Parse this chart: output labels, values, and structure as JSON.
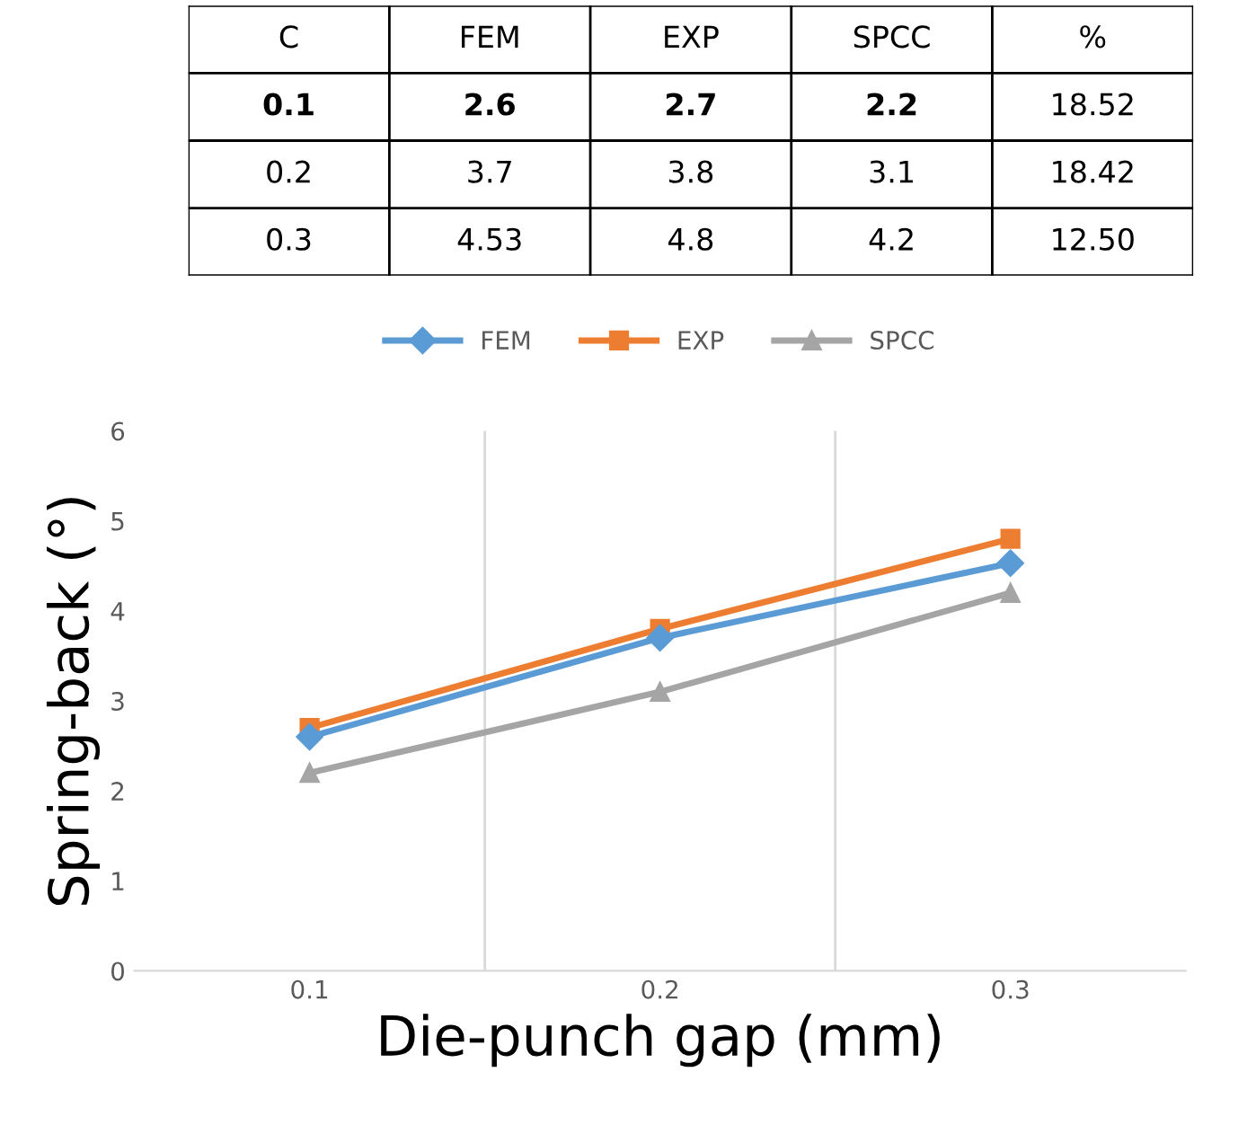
{
  "chart_data": [
    {
      "type": "other",
      "annotations": [
        "C",
        "FEM",
        "EXP",
        "SPCC",
        "%",
        "0.1",
        "2.6",
        "2.7",
        "2.2",
        "18.52",
        "0.2",
        "3.7",
        "3.8",
        "3.1",
        "18.42",
        "0.3",
        "4.53",
        "4.8",
        "4.2",
        "12.50"
      ]
    },
    {
      "type": "line",
      "xlabel": "Die-punch gap (mm)",
      "ylabel": "Spring-back (°)",
      "categories": [
        "0.1",
        "0.2",
        "0.3"
      ],
      "series": [
        {
          "name": "FEM",
          "color": "#5b9bd5",
          "marker": "diamond",
          "values": [
            2.6,
            3.7,
            4.53
          ]
        },
        {
          "name": "EXP",
          "color": "#ed7d31",
          "marker": "square",
          "values": [
            2.7,
            3.8,
            4.8
          ]
        },
        {
          "name": "SPCC",
          "color": "#a5a5a5",
          "marker": "triangle",
          "values": [
            2.2,
            3.1,
            4.2
          ]
        }
      ],
      "ylim": [
        0,
        6
      ],
      "yticks": [
        0,
        1,
        2,
        3,
        4,
        5,
        6
      ],
      "grid": "x",
      "legend": "top"
    }
  ]
}
